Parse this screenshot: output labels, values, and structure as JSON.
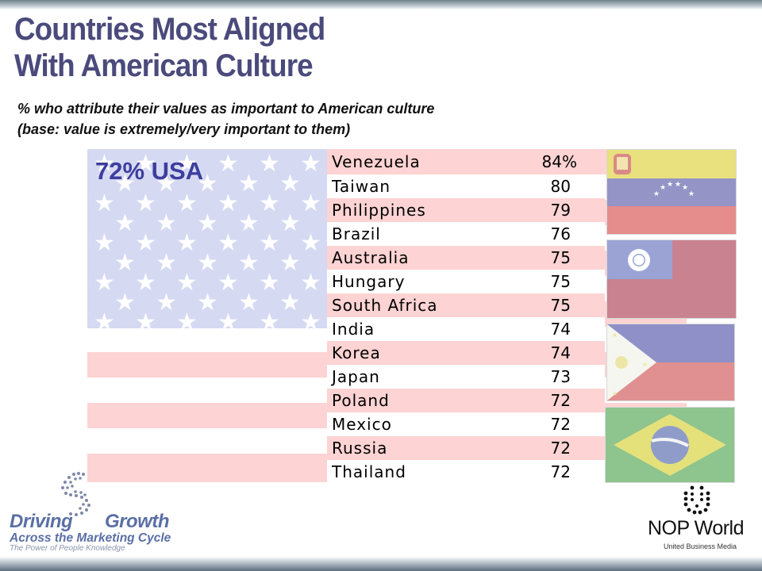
{
  "title_line1": "Countries Most Aligned",
  "title_line2": "With American Culture",
  "subtitle_line1": "% who attribute their values as important to American culture",
  "subtitle_line2": "(base: value is extremely/very important to them)",
  "usa_label": "72% USA",
  "colors": {
    "title": "#4a4a7c",
    "stripe_red": "#fdd3d3",
    "canton_blue": "#d5d9f2",
    "usa_label": "#3d3e9e"
  },
  "chart_data": {
    "type": "table",
    "title": "Countries Most Aligned With American Culture",
    "categories": [
      "Venezuela",
      "Taiwan",
      "Philippines",
      "Brazil",
      "Australia",
      "Hungary",
      "South Africa",
      "India",
      "Korea",
      "Japan",
      "Poland",
      "Mexico",
      "Russia",
      "Thailand"
    ],
    "value_labels": [
      "84%",
      "80",
      "79",
      "76",
      "75",
      "75",
      "75",
      "74",
      "74",
      "73",
      "72",
      "72",
      "72",
      "72"
    ],
    "values": [
      84,
      80,
      79,
      76,
      75,
      75,
      75,
      74,
      74,
      73,
      72,
      72,
      72,
      72
    ],
    "reference": {
      "label": "USA",
      "value": 72
    }
  },
  "flags": [
    "venezuela-flag",
    "taiwan-flag",
    "philippines-flag",
    "brazil-flag"
  ],
  "logo_left": {
    "word1": "Driving",
    "word2": "Growth",
    "line2": "Across the Marketing Cycle",
    "tagline": "The Power of People Knowledge"
  },
  "logo_right": {
    "name": "NOP World",
    "sub": "United Business Media"
  }
}
